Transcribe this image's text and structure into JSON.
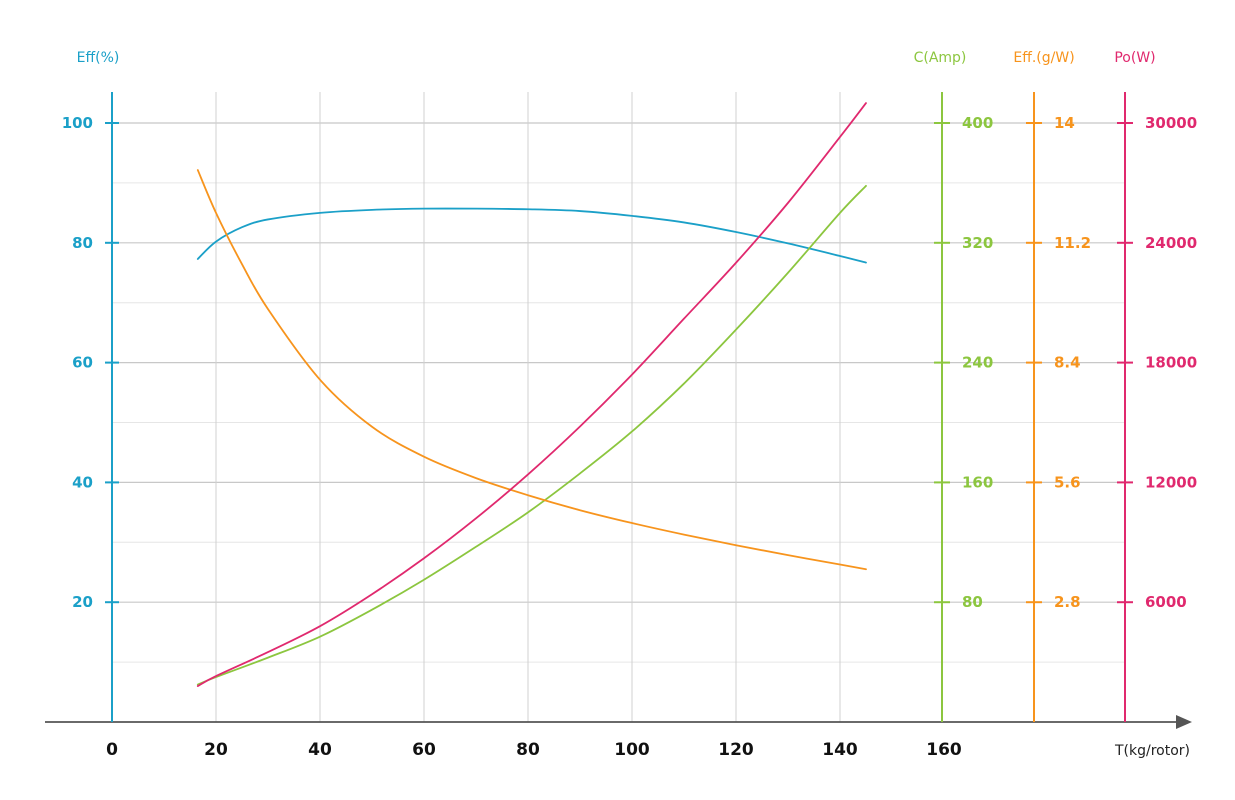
{
  "chart_data": {
    "type": "line",
    "title": "",
    "xlabel": "T(kg/rotor)",
    "xlim": [
      0,
      165
    ],
    "x_ticks": [
      0,
      20,
      40,
      60,
      80,
      100,
      120,
      140,
      160
    ],
    "grid": true,
    "axes": [
      {
        "id": "eff",
        "label": "Eff(%)",
        "color": "#1ba0c8",
        "position": "left",
        "ylim": [
          0,
          100
        ],
        "ticks": [
          20,
          40,
          60,
          80,
          100
        ]
      },
      {
        "id": "current",
        "label": "C(Amp)",
        "color": "#8cc63f",
        "position": "right",
        "ylim": [
          0,
          400
        ],
        "ticks": [
          80,
          160,
          240,
          320,
          400
        ]
      },
      {
        "id": "eff_gw",
        "label": "Eff.(g/W)",
        "color": "#f7941d",
        "position": "right",
        "ylim": [
          0,
          14
        ],
        "ticks": [
          "2.8",
          "5.6",
          "8.4",
          "11.2",
          "14"
        ]
      },
      {
        "id": "power",
        "label": "Po(W)",
        "color": "#e0296e",
        "position": "right",
        "ylim": [
          0,
          30000
        ],
        "ticks": [
          6000,
          12000,
          18000,
          24000,
          30000
        ]
      }
    ],
    "series": [
      {
        "axis": "eff",
        "color": "#1ba0c8",
        "x": [
          16.5,
          20,
          25,
          30,
          40,
          50,
          60,
          70,
          80,
          90,
          100,
          110,
          120,
          130,
          140,
          145
        ],
        "y": [
          77.3,
          80.2,
          82.6,
          83.9,
          85.0,
          85.5,
          85.7,
          85.7,
          85.6,
          85.3,
          84.5,
          83.4,
          81.8,
          79.9,
          77.8,
          76.7
        ]
      },
      {
        "axis": "current",
        "color": "#8cc63f",
        "x": [
          16.5,
          20,
          30,
          40,
          50,
          60,
          70,
          80,
          90,
          100,
          110,
          120,
          130,
          140,
          145
        ],
        "y": [
          25,
          30,
          43,
          57,
          75,
          95,
          117,
          140,
          166,
          194,
          226,
          262,
          300,
          340,
          358
        ]
      },
      {
        "axis": "eff_gw",
        "color": "#f7941d",
        "x": [
          16.5,
          20,
          25,
          30,
          40,
          50,
          60,
          70,
          80,
          90,
          100,
          110,
          120,
          130,
          140,
          145
        ],
        "y": [
          12.9,
          11.9,
          10.7,
          9.65,
          8.0,
          6.9,
          6.2,
          5.7,
          5.3,
          4.95,
          4.65,
          4.38,
          4.13,
          3.9,
          3.68,
          3.57
        ]
      },
      {
        "axis": "power",
        "color": "#e0296e",
        "x": [
          16.5,
          20,
          30,
          40,
          50,
          60,
          70,
          80,
          90,
          100,
          110,
          120,
          130,
          140,
          145
        ],
        "y": [
          1800,
          2300,
          3500,
          4800,
          6400,
          8200,
          10200,
          12400,
          14800,
          17400,
          20200,
          23000,
          26000,
          29300,
          31000
        ]
      }
    ]
  }
}
